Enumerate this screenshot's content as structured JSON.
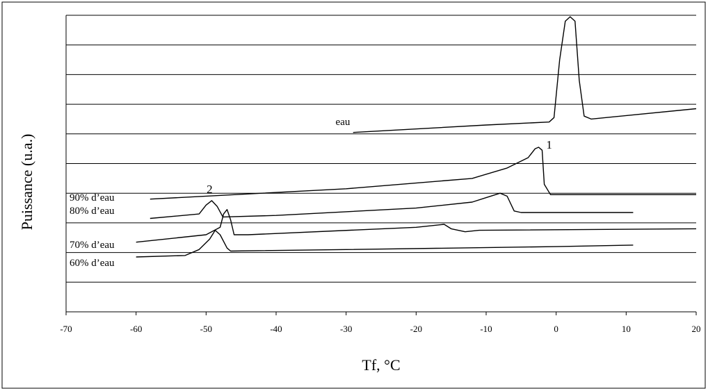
{
  "chart_data": {
    "type": "line",
    "xlabel": "Tf, °C",
    "ylabel": "Puissance (u.a.)",
    "xlim": [
      -70,
      20
    ],
    "ylim": [
      0,
      10
    ],
    "x_ticks": [
      -70,
      -60,
      -50,
      -40,
      -30,
      -20,
      -10,
      0,
      10,
      20
    ],
    "x_tick_labels": [
      "-70",
      "-60",
      "-50",
      "-40",
      "-30",
      "-20",
      "-10",
      "0",
      "10",
      "20"
    ],
    "grid": true,
    "annotations": [
      {
        "text": "1",
        "x": -1.0,
        "y": 5.5
      },
      {
        "text": "2",
        "x": -49.5,
        "y": 4.0
      }
    ],
    "series": [
      {
        "name": "eau",
        "label_at": {
          "x": -32,
          "y": 6.3
        },
        "points": [
          [
            -29,
            6.05
          ],
          [
            -10,
            6.3
          ],
          [
            -1,
            6.4
          ],
          [
            -0.3,
            6.55
          ],
          [
            0.5,
            8.5
          ],
          [
            1.3,
            9.8
          ],
          [
            2,
            9.95
          ],
          [
            2.7,
            9.8
          ],
          [
            3.3,
            7.8
          ],
          [
            4,
            6.6
          ],
          [
            5,
            6.5
          ],
          [
            20,
            6.85
          ]
        ]
      },
      {
        "name": "90% d’eau",
        "label_at": {
          "x": -70,
          "y": 3.75
        },
        "points": [
          [
            -58,
            3.8
          ],
          [
            -30,
            4.15
          ],
          [
            -12,
            4.5
          ],
          [
            -7,
            4.85
          ],
          [
            -4,
            5.2
          ],
          [
            -3,
            5.5
          ],
          [
            -2.5,
            5.55
          ],
          [
            -2,
            5.45
          ],
          [
            -1.7,
            4.3
          ],
          [
            -0.8,
            3.95
          ],
          [
            0,
            3.95
          ],
          [
            20,
            3.95
          ]
        ]
      },
      {
        "name": "80% d’eau",
        "label_at": {
          "x": -70,
          "y": 3.3
        },
        "points": [
          [
            -58,
            3.15
          ],
          [
            -51,
            3.3
          ],
          [
            -50,
            3.6
          ],
          [
            -49.2,
            3.75
          ],
          [
            -48.4,
            3.55
          ],
          [
            -47.6,
            3.2
          ],
          [
            -40,
            3.25
          ],
          [
            -20,
            3.5
          ],
          [
            -12,
            3.7
          ],
          [
            -10,
            3.85
          ],
          [
            -8,
            4.0
          ],
          [
            -7,
            3.9
          ],
          [
            -6,
            3.4
          ],
          [
            -5,
            3.35
          ],
          [
            11,
            3.35
          ]
        ]
      },
      {
        "name": "70% d’eau",
        "label_at": {
          "x": -70,
          "y": 2.15
        },
        "points": [
          [
            -60,
            2.35
          ],
          [
            -50,
            2.6
          ],
          [
            -48,
            2.85
          ],
          [
            -47.5,
            3.3
          ],
          [
            -47,
            3.45
          ],
          [
            -46.5,
            3.1
          ],
          [
            -46,
            2.6
          ],
          [
            -44,
            2.6
          ],
          [
            -20,
            2.85
          ],
          [
            -16,
            2.95
          ],
          [
            -15,
            2.8
          ],
          [
            -13,
            2.7
          ],
          [
            -11,
            2.75
          ],
          [
            20,
            2.8
          ]
        ]
      },
      {
        "name": "60% d’eau",
        "label_at": {
          "x": -70,
          "y": 1.55
        },
        "points": [
          [
            -60,
            1.85
          ],
          [
            -53,
            1.9
          ],
          [
            -51,
            2.1
          ],
          [
            -49.5,
            2.45
          ],
          [
            -48.7,
            2.75
          ],
          [
            -48,
            2.6
          ],
          [
            -47,
            2.15
          ],
          [
            -46.5,
            2.05
          ],
          [
            -30,
            2.1
          ],
          [
            0,
            2.2
          ],
          [
            11,
            2.25
          ]
        ]
      }
    ]
  }
}
